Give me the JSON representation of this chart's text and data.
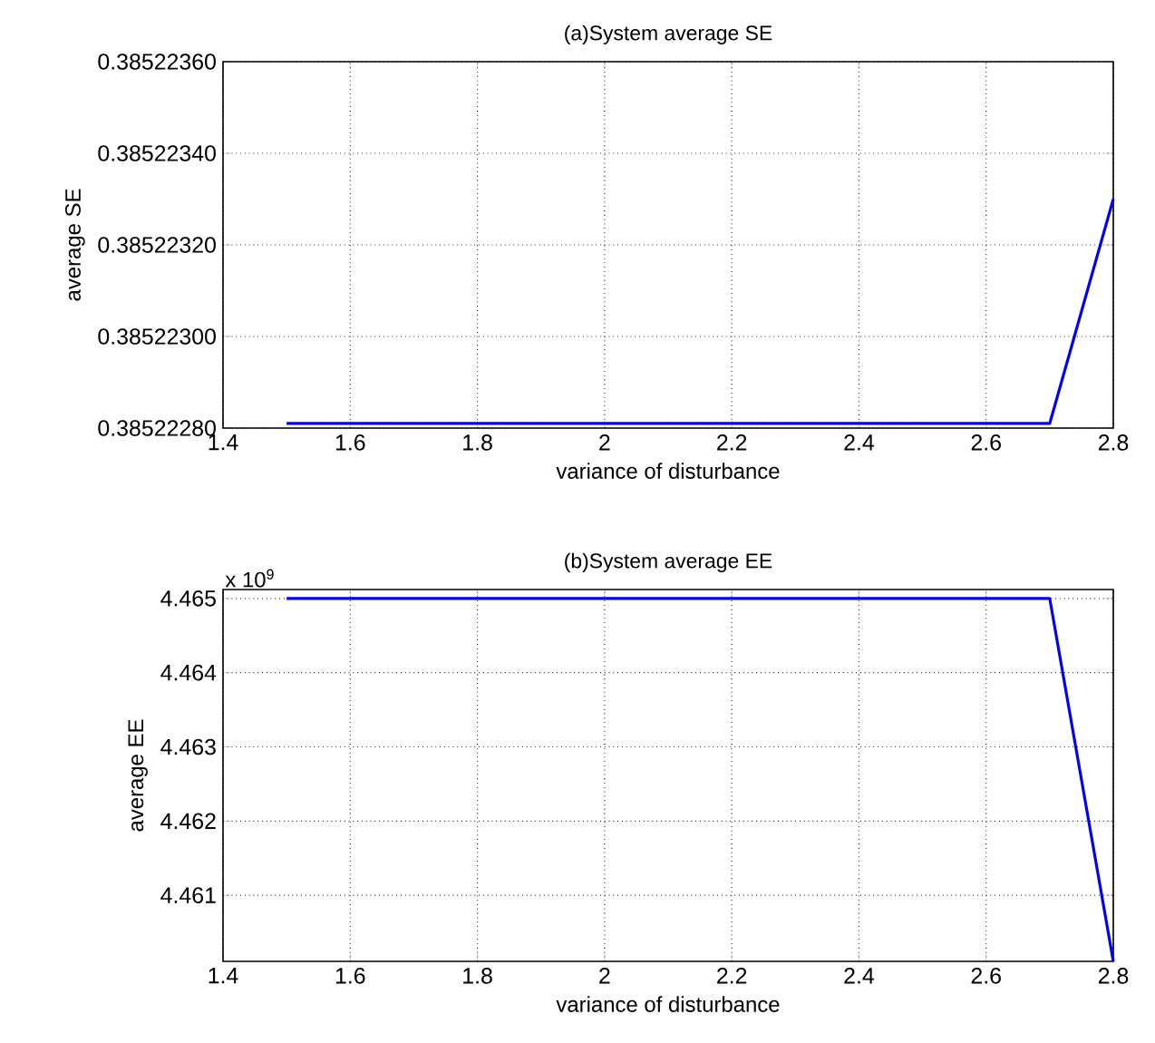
{
  "chart_data": [
    {
      "type": "line",
      "title": "(a)System average SE",
      "xlabel": "variance of disturbance",
      "ylabel": "average SE",
      "x": [
        1.5,
        2.7,
        2.8
      ],
      "series": [
        {
          "color": "#0000ff",
          "values": [
            0.38522281,
            0.38522281,
            0.3852233
          ]
        }
      ],
      "xlim": [
        1.4,
        2.8
      ],
      "xticks": [
        1.4,
        1.6,
        1.8,
        2,
        2.2,
        2.4,
        2.6,
        2.8
      ],
      "ylim": [
        0.3852228,
        0.3852236
      ],
      "yticks": [
        {
          "value": 0.3852228,
          "label": "0.38522280"
        },
        {
          "value": 0.385223,
          "label": "0.38522300"
        },
        {
          "value": 0.3852232,
          "label": "0.38522320"
        },
        {
          "value": 0.3852234,
          "label": "0.38522340"
        },
        {
          "value": 0.3852236,
          "label": "0.38522360"
        }
      ],
      "grid": true
    },
    {
      "type": "line",
      "title": "(b)System average EE",
      "xlabel": "variance of disturbance",
      "ylabel": "average EE",
      "annotations": [
        "x 10$^{9}$"
      ],
      "x": [
        1.5,
        2.7,
        2.8
      ],
      "series": [
        {
          "color": "#0000ff",
          "values": [
            4.465,
            4.465,
            4.46011
          ]
        }
      ],
      "xlim": [
        1.4,
        2.8
      ],
      "xticks": [
        1.4,
        1.6,
        1.8,
        2,
        2.2,
        2.4,
        2.6,
        2.8
      ],
      "ylim": [
        4.46011,
        4.46512
      ],
      "yticks": [
        4.461,
        4.462,
        4.463,
        4.464,
        4.465
      ],
      "grid": true
    }
  ]
}
